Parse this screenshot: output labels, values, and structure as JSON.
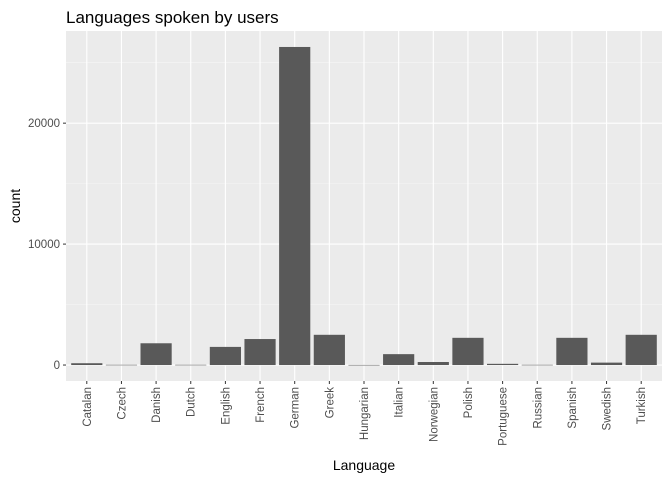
{
  "chart_data": {
    "type": "bar",
    "title": "Languages spoken by users",
    "xlabel": "Language",
    "ylabel": "count",
    "categories": [
      "Catalan",
      "Czech",
      "Danish",
      "Dutch",
      "English",
      "French",
      "German",
      "Greek",
      "Hungarian",
      "Italian",
      "Norwegian",
      "Polish",
      "Portuguese",
      "Russian",
      "Spanish",
      "Swedish",
      "Turkish"
    ],
    "values": [
      150,
      20,
      1800,
      20,
      1500,
      2150,
      26300,
      2500,
      10,
      900,
      250,
      2250,
      100,
      20,
      2250,
      200,
      2500
    ],
    "yticks": [
      0,
      10000,
      20000
    ],
    "ylim": [
      -1320,
      27620
    ],
    "grid": true,
    "legend": "none",
    "colors": {
      "bar": "#595959",
      "panel": "#ebebeb",
      "grid_major": "#ffffff",
      "grid_minor": "#f5f5f5"
    }
  }
}
